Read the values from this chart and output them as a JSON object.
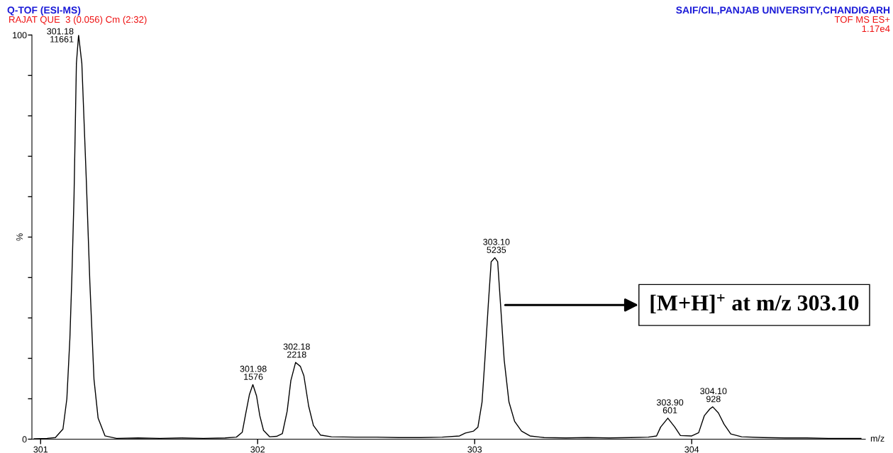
{
  "chart_data": {
    "type": "line",
    "title": "Q-TOF (ESI-MS)",
    "subtitle": "RAJAT QUE  3 (0.056) Cm (2:32)",
    "xlabel": "m/z",
    "ylabel": "%",
    "x": [
      300.97,
      301.03,
      301.068,
      301.103,
      301.121,
      301.135,
      301.144,
      301.154,
      301.165,
      301.175,
      301.19,
      301.21,
      301.227,
      301.246,
      301.265,
      301.297,
      301.35,
      301.45,
      301.55,
      301.65,
      301.75,
      301.85,
      301.902,
      301.929,
      301.945,
      301.962,
      301.978,
      301.995,
      302.01,
      302.027,
      302.055,
      302.087,
      302.114,
      302.136,
      302.153,
      302.175,
      302.197,
      302.213,
      302.235,
      302.257,
      302.29,
      302.34,
      302.45,
      302.55,
      302.65,
      302.75,
      302.85,
      302.93,
      302.957,
      302.995,
      303.015,
      303.034,
      303.047,
      303.063,
      303.076,
      303.093,
      303.106,
      303.119,
      303.136,
      303.158,
      303.184,
      303.216,
      303.255,
      303.32,
      303.42,
      303.52,
      303.62,
      303.72,
      303.8,
      303.838,
      303.857,
      303.89,
      303.922,
      303.948,
      304.0,
      304.032,
      304.058,
      304.084,
      304.097,
      304.123,
      304.149,
      304.18,
      304.23,
      304.33,
      304.43,
      304.53,
      304.63,
      304.78
    ],
    "series": [
      {
        "color": "#000000",
        "values": [
          0.1,
          0.2,
          0.4,
          2.5,
          10.0,
          25,
          40,
          60,
          93,
          100,
          93,
          65,
          38.7,
          14.8,
          5.2,
          0.8,
          0.2,
          0.3,
          0.2,
          0.3,
          0.2,
          0.3,
          0.5,
          1.7,
          6.3,
          11,
          13.5,
          10.7,
          5.8,
          2.2,
          0.6,
          0.7,
          1.4,
          6.9,
          14.5,
          19.0,
          18,
          15.7,
          8.2,
          3.4,
          1.0,
          0.6,
          0.5,
          0.5,
          0.4,
          0.4,
          0.5,
          0.8,
          1.5,
          2.0,
          3.0,
          9.2,
          19.6,
          33.5,
          43.9,
          44.9,
          43.9,
          33.5,
          19.6,
          9.2,
          4.4,
          2.0,
          0.8,
          0.4,
          0.3,
          0.4,
          0.3,
          0.4,
          0.5,
          0.8,
          3.0,
          5.2,
          3.0,
          0.9,
          0.8,
          1.6,
          5.8,
          7.5,
          8.0,
          6.5,
          3.7,
          1.3,
          0.6,
          0.4,
          0.3,
          0.3,
          0.2,
          0.2
        ]
      }
    ],
    "xlim": [
      300.96,
      304.8
    ],
    "xticks": [
      301,
      302,
      303,
      304
    ],
    "ylim": [
      0,
      100
    ],
    "yticks": [
      0,
      {
        "value": 10,
        "label": null
      },
      {
        "value": 20,
        "label": null
      },
      {
        "value": 30,
        "label": null
      },
      {
        "value": 40,
        "label": null
      },
      {
        "value": 50,
        "label": null
      },
      {
        "value": 60,
        "label": null
      },
      {
        "value": 70,
        "label": null
      },
      {
        "value": 80,
        "label": null
      },
      {
        "value": 90,
        "label": null
      },
      100
    ],
    "line_style": "solid",
    "annotations": [
      "SAIF/CIL,PANJAB UNIVERSITY,CHANDIGARH",
      "TOF MS ES+",
      "1.17e4",
      {
        "text": "301.18\n11661",
        "x": 301.18,
        "y": 100
      },
      {
        "text": "301.98\n1576",
        "x": 301.98,
        "y": 13.5
      },
      {
        "text": "302.18\n2218",
        "x": 302.18,
        "y": 19.0
      },
      {
        "text": "303.10\n5235",
        "x": 303.1,
        "y": 44.9
      },
      {
        "text": "303.90\n601",
        "x": 303.9,
        "y": 5.2
      },
      {
        "text": "304.10\n928",
        "x": 304.1,
        "y": 8.0
      },
      "[M+H]$^{+}$ at m/z 303.10"
    ]
  }
}
